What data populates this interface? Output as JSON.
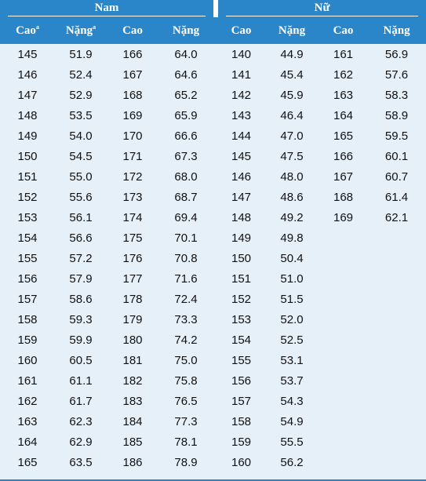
{
  "groups": {
    "male": "Nam",
    "female": "Nữ"
  },
  "columns": [
    {
      "label": "Cao",
      "sup": "a"
    },
    {
      "label": "Nặng",
      "sup": "a"
    },
    {
      "label": "Cao",
      "sup": ""
    },
    {
      "label": "Nặng",
      "sup": ""
    },
    {
      "label": "Cao",
      "sup": ""
    },
    {
      "label": "Nặng",
      "sup": ""
    },
    {
      "label": "Cao",
      "sup": ""
    },
    {
      "label": "Nặng",
      "sup": ""
    }
  ],
  "rows": [
    [
      "145",
      "51.9",
      "166",
      "64.0",
      "140",
      "44.9",
      "161",
      "56.9"
    ],
    [
      "146",
      "52.4",
      "167",
      "64.6",
      "141",
      "45.4",
      "162",
      "57.6"
    ],
    [
      "147",
      "52.9",
      "168",
      "65.2",
      "142",
      "45.9",
      "163",
      "58.3"
    ],
    [
      "148",
      "53.5",
      "169",
      "65.9",
      "143",
      "46.4",
      "164",
      "58.9"
    ],
    [
      "149",
      "54.0",
      "170",
      "66.6",
      "144",
      "47.0",
      "165",
      "59.5"
    ],
    [
      "150",
      "54.5",
      "171",
      "67.3",
      "145",
      "47.5",
      "166",
      "60.1"
    ],
    [
      "151",
      "55.0",
      "172",
      "68.0",
      "146",
      "48.0",
      "167",
      "60.7"
    ],
    [
      "152",
      "55.6",
      "173",
      "68.7",
      "147",
      "48.6",
      "168",
      "61.4"
    ],
    [
      "153",
      "56.1",
      "174",
      "69.4",
      "148",
      "49.2",
      "169",
      "62.1"
    ],
    [
      "154",
      "56.6",
      "175",
      "70.1",
      "149",
      "49.8",
      "",
      ""
    ],
    [
      "155",
      "57.2",
      "176",
      "70.8",
      "150",
      "50.4",
      "",
      ""
    ],
    [
      "156",
      "57.9",
      "177",
      "71.6",
      "151",
      "51.0",
      "",
      ""
    ],
    [
      "157",
      "58.6",
      "178",
      "72.4",
      "152",
      "51.5",
      "",
      ""
    ],
    [
      "158",
      "59.3",
      "179",
      "73.3",
      "153",
      "52.0",
      "",
      ""
    ],
    [
      "159",
      "59.9",
      "180",
      "74.2",
      "154",
      "52.5",
      "",
      ""
    ],
    [
      "160",
      "60.5",
      "181",
      "75.0",
      "155",
      "53.1",
      "",
      ""
    ],
    [
      "161",
      "61.1",
      "182",
      "75.8",
      "156",
      "53.7",
      "",
      ""
    ],
    [
      "162",
      "61.7",
      "183",
      "76.5",
      "157",
      "54.3",
      "",
      ""
    ],
    [
      "163",
      "62.3",
      "184",
      "77.3",
      "158",
      "54.9",
      "",
      ""
    ],
    [
      "164",
      "62.9",
      "185",
      "78.1",
      "159",
      "55.5",
      "",
      ""
    ],
    [
      "165",
      "63.5",
      "186",
      "78.9",
      "160",
      "56.2",
      "",
      ""
    ]
  ],
  "colors": {
    "header_bg": "#2a86c9",
    "body_bg": "#e6f0f9",
    "header_text": "#ffffff",
    "body_text": "#111111"
  }
}
